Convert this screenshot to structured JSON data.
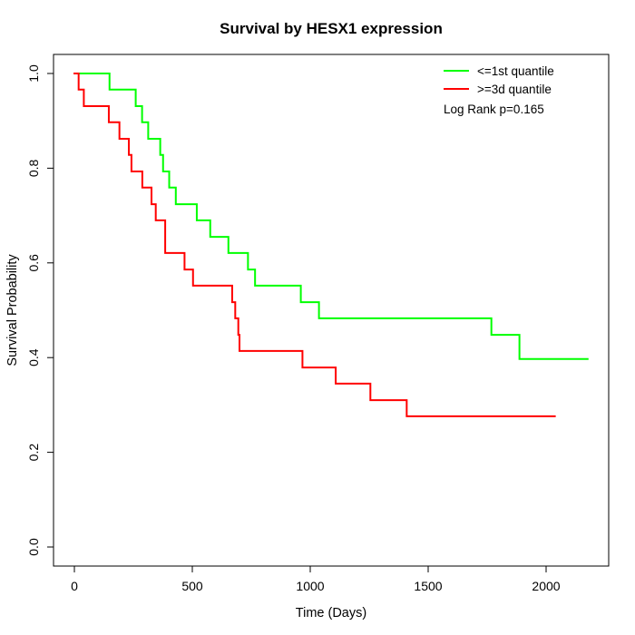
{
  "title": "Survival by HESX1 expression",
  "x_axis": {
    "label": "Time (Days)",
    "ticks": [
      0,
      500,
      1000,
      1500,
      2000
    ]
  },
  "y_axis": {
    "label": "Survival Probability",
    "ticks": [
      0.0,
      0.2,
      0.4,
      0.6,
      0.8,
      1.0
    ]
  },
  "legend": {
    "items": [
      {
        "label": "<=1st quantile",
        "color": "#00ff00"
      },
      {
        "label": ">=3d quantile",
        "color": "#ff0000"
      }
    ],
    "note": "Log Rank p=0.165"
  },
  "chart_data": {
    "type": "line",
    "subtype": "kaplan-meier-step",
    "title": "Survival by HESX1 expression",
    "xlabel": "Time (Days)",
    "ylabel": "Survival Probability",
    "xlim": [
      0,
      2265
    ],
    "ylim": [
      0,
      1
    ],
    "grid": false,
    "legend_position": "topright",
    "annotation": "Log Rank p=0.165",
    "series": [
      {
        "name": "<=1st quantile",
        "color": "#00ff00",
        "end_time": 2176,
        "points": [
          [
            0,
            1.0
          ],
          [
            149,
            0.966
          ],
          [
            260,
            0.931
          ],
          [
            287,
            0.897
          ],
          [
            313,
            0.862
          ],
          [
            364,
            0.828
          ],
          [
            376,
            0.793
          ],
          [
            402,
            0.759
          ],
          [
            430,
            0.724
          ],
          [
            519,
            0.69
          ],
          [
            576,
            0.655
          ],
          [
            653,
            0.621
          ],
          [
            736,
            0.586
          ],
          [
            766,
            0.552
          ],
          [
            960,
            0.517
          ],
          [
            1037,
            0.483
          ],
          [
            1768,
            0.448
          ],
          [
            1887,
            0.397
          ]
        ]
      },
      {
        "name": ">=3d quantile",
        "color": "#ff0000",
        "end_time": 2037,
        "points": [
          [
            0,
            1.0
          ],
          [
            18,
            0.966
          ],
          [
            40,
            0.931
          ],
          [
            146,
            0.897
          ],
          [
            191,
            0.862
          ],
          [
            231,
            0.828
          ],
          [
            242,
            0.793
          ],
          [
            288,
            0.759
          ],
          [
            327,
            0.724
          ],
          [
            345,
            0.69
          ],
          [
            385,
            0.621
          ],
          [
            467,
            0.586
          ],
          [
            503,
            0.552
          ],
          [
            669,
            0.517
          ],
          [
            682,
            0.483
          ],
          [
            695,
            0.448
          ],
          [
            700,
            0.414
          ],
          [
            967,
            0.379
          ],
          [
            1108,
            0.345
          ],
          [
            1255,
            0.31
          ],
          [
            1409,
            0.276
          ]
        ]
      }
    ]
  }
}
